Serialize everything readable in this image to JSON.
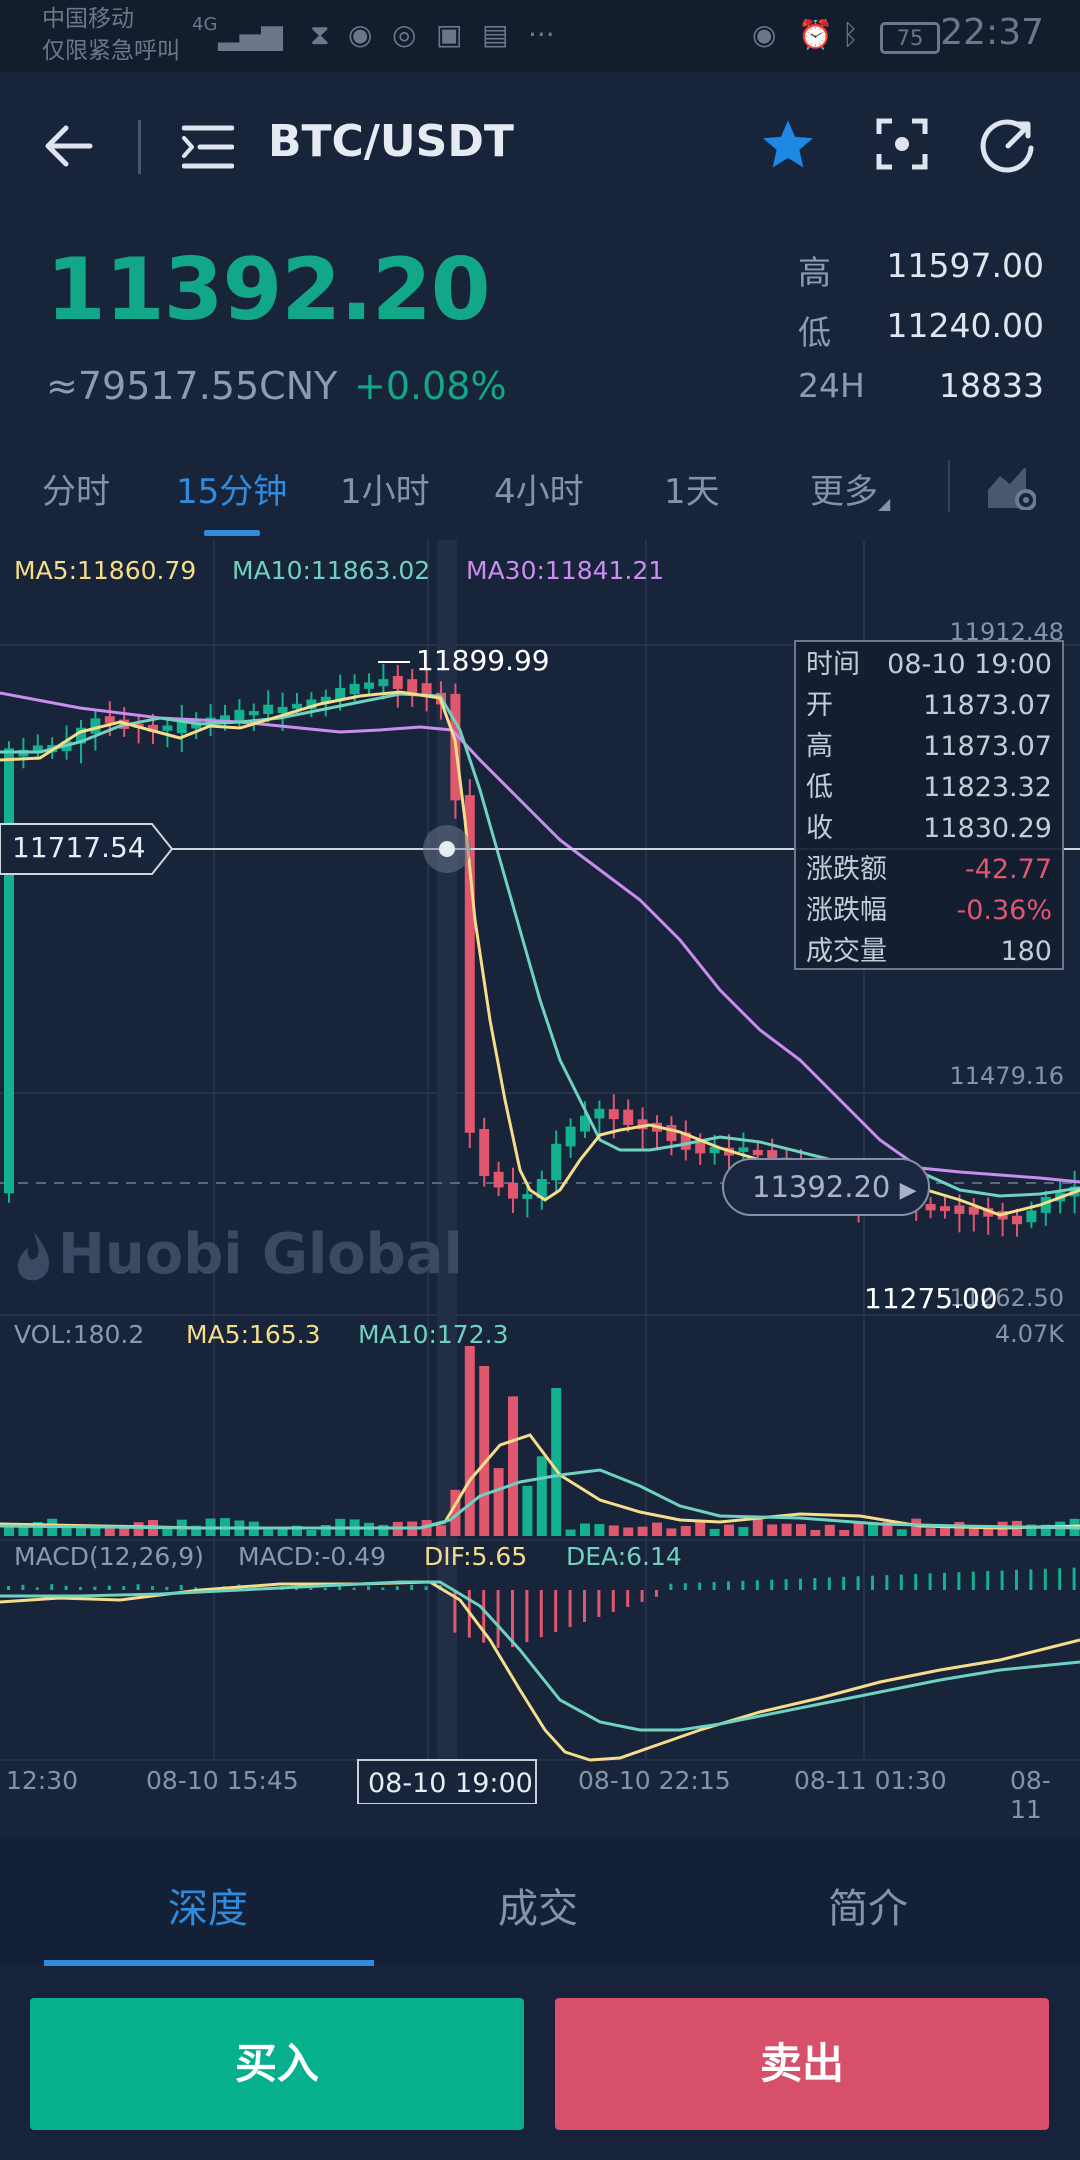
{
  "status_bar": {
    "carrier": "中国移动",
    "carrier_note": "仅限紧急呼叫",
    "network": "4G",
    "battery": "75",
    "time": "22:37"
  },
  "header": {
    "pair": "BTC/USDT",
    "icons": [
      "back-arrow-icon",
      "list-menu-icon",
      "star-icon",
      "screenshot-icon",
      "refresh-icon"
    ],
    "star_color": "#1e88e5"
  },
  "price": {
    "last": "11392.20",
    "cny": "≈79517.55CNY",
    "change": "+0.08%",
    "color_up": "#12a789",
    "color_down": "#e0576e"
  },
  "stats": [
    {
      "label": "高",
      "value": "11597.00"
    },
    {
      "label": "低",
      "value": "11240.00"
    },
    {
      "label": "24H",
      "value": "18833"
    }
  ],
  "period_tabs": [
    "分时",
    "15分钟",
    "1小时",
    "4小时",
    "1天",
    "更多"
  ],
  "active_period": "15分钟",
  "chart": {
    "ma_legend": {
      "ma5": "MA5:11860.79",
      "ma10": "MA10:11863.02",
      "ma30": "MA30:11841.21"
    },
    "axis_right": [
      "11912.48",
      "11479.16",
      "11262.50"
    ],
    "max_label": "11899.99",
    "min_label": "11275.00",
    "crosshair_price": "11717.54",
    "last_price_pill": "11392.20",
    "watermark": "Huobi Global",
    "vol_legend": {
      "vol": "VOL:180.2",
      "ma5": "MA5:165.3",
      "ma10": "MA10:172.3"
    },
    "vol_axis": "4.07K",
    "macd_legend": {
      "name": "MACD(12,26,9)",
      "macd": "MACD:-0.49",
      "dif": "DIF:5.65",
      "dea": "DEA:6.14"
    },
    "time_axis": [
      "12:30",
      "08-10 15:45",
      "08-10 19:00",
      "08-10 22:15",
      "08-11 01:30",
      "08-11"
    ],
    "colors": {
      "ma5": "#f5dd8a",
      "ma10": "#6fd2c0",
      "ma30": "#c98ef0",
      "up": "#13b18f",
      "down": "#e0576e"
    }
  },
  "info_box": [
    {
      "k": "时间",
      "v": "08-10 19:00",
      "neg": false
    },
    {
      "k": "开",
      "v": "11873.07",
      "neg": false
    },
    {
      "k": "高",
      "v": "11873.07",
      "neg": false
    },
    {
      "k": "低",
      "v": "11823.32",
      "neg": false
    },
    {
      "k": "收",
      "v": "11830.29",
      "neg": false
    },
    {
      "k": "涨跌额",
      "v": "-42.77",
      "neg": true
    },
    {
      "k": "涨跌幅",
      "v": "-0.36%",
      "neg": true
    },
    {
      "k": "成交量",
      "v": "180",
      "neg": false
    }
  ],
  "bottom_tabs": [
    "深度",
    "成交",
    "简介"
  ],
  "actions": {
    "buy": "买入",
    "sell": "卖出"
  }
}
